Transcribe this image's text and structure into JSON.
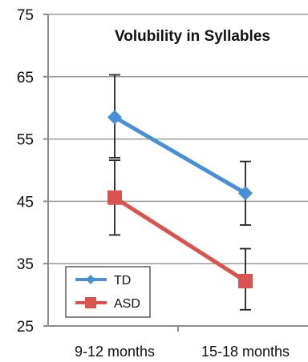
{
  "chart_data": {
    "type": "line",
    "title": "Volubility  in Syllables",
    "xlabel": "",
    "ylabel": "",
    "categories": [
      "9-12 months",
      "15-18 months"
    ],
    "ylim": [
      25,
      75
    ],
    "yticks": [
      25,
      35,
      45,
      55,
      65,
      75
    ],
    "grid": "horizontal",
    "legend_position": "bottom-left",
    "series": [
      {
        "name": "TD",
        "color": "#4a8fd6",
        "marker": "diamond",
        "values": [
          58.5,
          46.3
        ],
        "error_low": [
          52.0,
          41.2
        ],
        "error_high": [
          65.3,
          51.4
        ]
      },
      {
        "name": "ASD",
        "color": "#d9534f",
        "marker": "square",
        "values": [
          45.6,
          32.2
        ],
        "error_low": [
          39.6,
          27.6
        ],
        "error_high": [
          51.6,
          37.4
        ]
      }
    ]
  }
}
